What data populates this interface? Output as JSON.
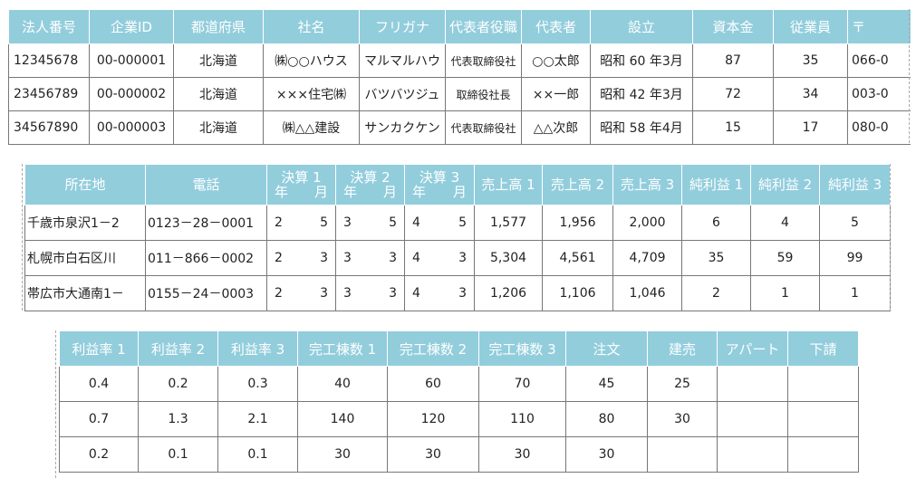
{
  "table1": {
    "headers": [
      "法人番号",
      "企業ID",
      "都道府県",
      "社名",
      "フリガナ",
      "代表者役職",
      "代表者",
      "設立",
      "資本金",
      "従業員",
      "〒"
    ],
    "rows": [
      [
        "12345678",
        "00-000001",
        "北海道",
        "㈱○○ハウス",
        "マルマルハウ",
        "代表取締役社",
        "○○太郎",
        "昭和 60 年3月",
        "87",
        "35",
        "066-0"
      ],
      [
        "23456789",
        "00-000002",
        "北海道",
        "×××住宅㈱",
        "バツバツジュ",
        "取締役社長",
        "××一郎",
        "昭和 42 年3月",
        "72",
        "34",
        "003-0"
      ],
      [
        "34567890",
        "00-000003",
        "北海道",
        "㈱△△建設",
        "サンカクケン",
        "代表取締役社",
        "△△次郎",
        "昭和 58 年4月",
        "15",
        "17",
        "080-0"
      ]
    ]
  },
  "table2": {
    "headers": [
      "所在地",
      "電話",
      "決算 1",
      "決算 2",
      "決算 3",
      "売上高 1",
      "売上高 2",
      "売上高 3",
      "純利益 1",
      "純利益 2",
      "純利益 3"
    ],
    "year_label": "年",
    "month_label": "月",
    "rows": [
      [
        "千歳市泉沢1－2",
        "0123－28－0001",
        "2",
        "5",
        "3",
        "5",
        "4",
        "5",
        "1,577",
        "1,956",
        "2,000",
        "6",
        "4",
        "5"
      ],
      [
        "札幌市白石区川",
        "011－866－0002",
        "2",
        "3",
        "3",
        "3",
        "4",
        "3",
        "5,304",
        "4,561",
        "4,709",
        "35",
        "59",
        "99"
      ],
      [
        "帯広市大通南1－",
        "0155－24－0003",
        "2",
        "3",
        "3",
        "3",
        "4",
        "3",
        "1,206",
        "1,106",
        "1,046",
        "2",
        "1",
        "1"
      ]
    ]
  },
  "table3": {
    "headers": [
      "利益率 1",
      "利益率 2",
      "利益率 3",
      "完工棟数 1",
      "完工棟数 2",
      "完工棟数 3",
      "注文",
      "建売",
      "アパート",
      "下請"
    ],
    "rows": [
      [
        "0.4",
        "0.2",
        "0.3",
        "40",
        "60",
        "70",
        "45",
        "25",
        "",
        ""
      ],
      [
        "0.7",
        "1.3",
        "2.1",
        "140",
        "120",
        "110",
        "80",
        "30",
        "",
        ""
      ],
      [
        "0.2",
        "0.1",
        "0.1",
        "30",
        "30",
        "30",
        "30",
        "",
        "",
        ""
      ]
    ]
  }
}
